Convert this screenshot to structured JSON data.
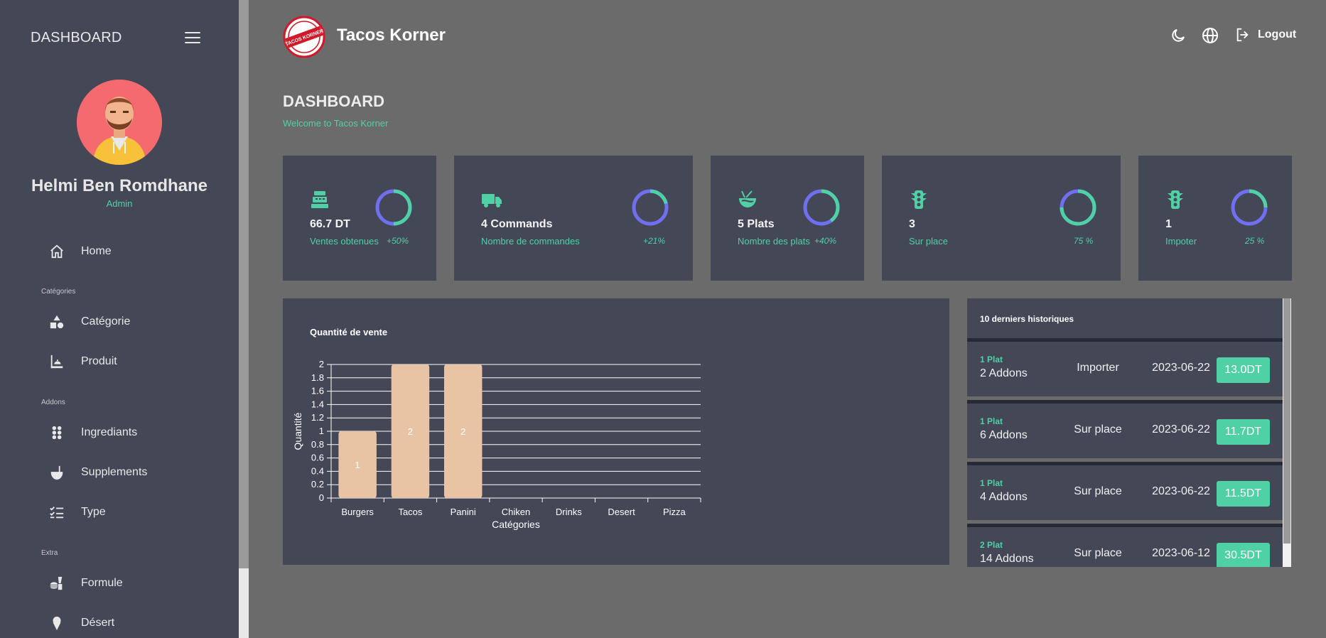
{
  "sidebar": {
    "title": "DASHBOARD",
    "user": {
      "name": "Helmi Ben Romdhane",
      "role": "Admin"
    },
    "items": [
      {
        "label": "Home",
        "icon": "home-icon"
      },
      {
        "label": "Catégorie",
        "icon": "shapes-icon"
      },
      {
        "label": "Produit",
        "icon": "product-icon"
      },
      {
        "label": "Ingrediants",
        "icon": "ingredients-icon"
      },
      {
        "label": "Supplements",
        "icon": "ladle-icon"
      },
      {
        "label": "Type",
        "icon": "checklist-icon"
      },
      {
        "label": "Formule",
        "icon": "fastfood-icon"
      },
      {
        "label": "Désert",
        "icon": "icecream-icon"
      }
    ],
    "sections": {
      "categories": "Catégories",
      "addons": "Addons",
      "extra": "Extra"
    }
  },
  "topbar": {
    "brand": "Tacos Korner",
    "logo_text": "TACOS KORNER",
    "logout_label": "Logout"
  },
  "page": {
    "title": "DASHBOARD",
    "subtitle": "Welcome to Tacos Korner"
  },
  "stats": [
    {
      "value": "66.7 DT",
      "label": "Ventes obtenues",
      "pct": "+50%",
      "progress": 0.5,
      "icon": "cash-register-icon"
    },
    {
      "value": "4 Commands",
      "label": "Nombre de commandes",
      "pct": "+21%",
      "progress": 0.21,
      "icon": "truck-icon"
    },
    {
      "value": "5 Plats",
      "label": "Nombre des plats",
      "pct": "+40%",
      "progress": 0.4,
      "icon": "noodles-icon"
    },
    {
      "value": "3",
      "label": "Sur place",
      "pct": "75 %",
      "progress": 0.75,
      "icon": "traffic-light-icon"
    },
    {
      "value": "1",
      "label": "Impoter",
      "pct": "25 %",
      "progress": 0.25,
      "icon": "traffic-light-icon"
    }
  ],
  "chart_data": {
    "type": "bar",
    "title": "Quantité de vente",
    "xlabel": "Catégories",
    "ylabel": "Quantité",
    "categories": [
      "Burgers",
      "Tacos",
      "Panini",
      "Chiken",
      "Drinks",
      "Desert",
      "Pizza"
    ],
    "values": [
      1,
      2,
      2,
      0,
      0,
      0,
      0
    ],
    "ylim": [
      0,
      2
    ],
    "yticks": [
      "0",
      "0.2",
      "0.4",
      "0.6",
      "0.8",
      "1",
      "1.2",
      "1.4",
      "1.6",
      "1.8",
      "2"
    ],
    "grid": true,
    "bar_color": "#e8c4a4"
  },
  "history": {
    "title": "10 derniers historiques",
    "rows": [
      {
        "plat": "1 Plat",
        "addons": "2 Addons",
        "type": "Importer",
        "date": "2023-06-22",
        "price": "13.0DT"
      },
      {
        "plat": "1 Plat",
        "addons": "6 Addons",
        "type": "Sur place",
        "date": "2023-06-22",
        "price": "11.7DT"
      },
      {
        "plat": "1 Plat",
        "addons": "4 Addons",
        "type": "Sur place",
        "date": "2023-06-22",
        "price": "11.5DT"
      },
      {
        "plat": "2 Plat",
        "addons": "14 Addons",
        "type": "Sur place",
        "date": "2023-06-12",
        "price": "30.5DT"
      }
    ]
  },
  "colors": {
    "accent": "#4fd1a5",
    "ring_secondary": "#6f6ff0",
    "panel": "#434756"
  }
}
